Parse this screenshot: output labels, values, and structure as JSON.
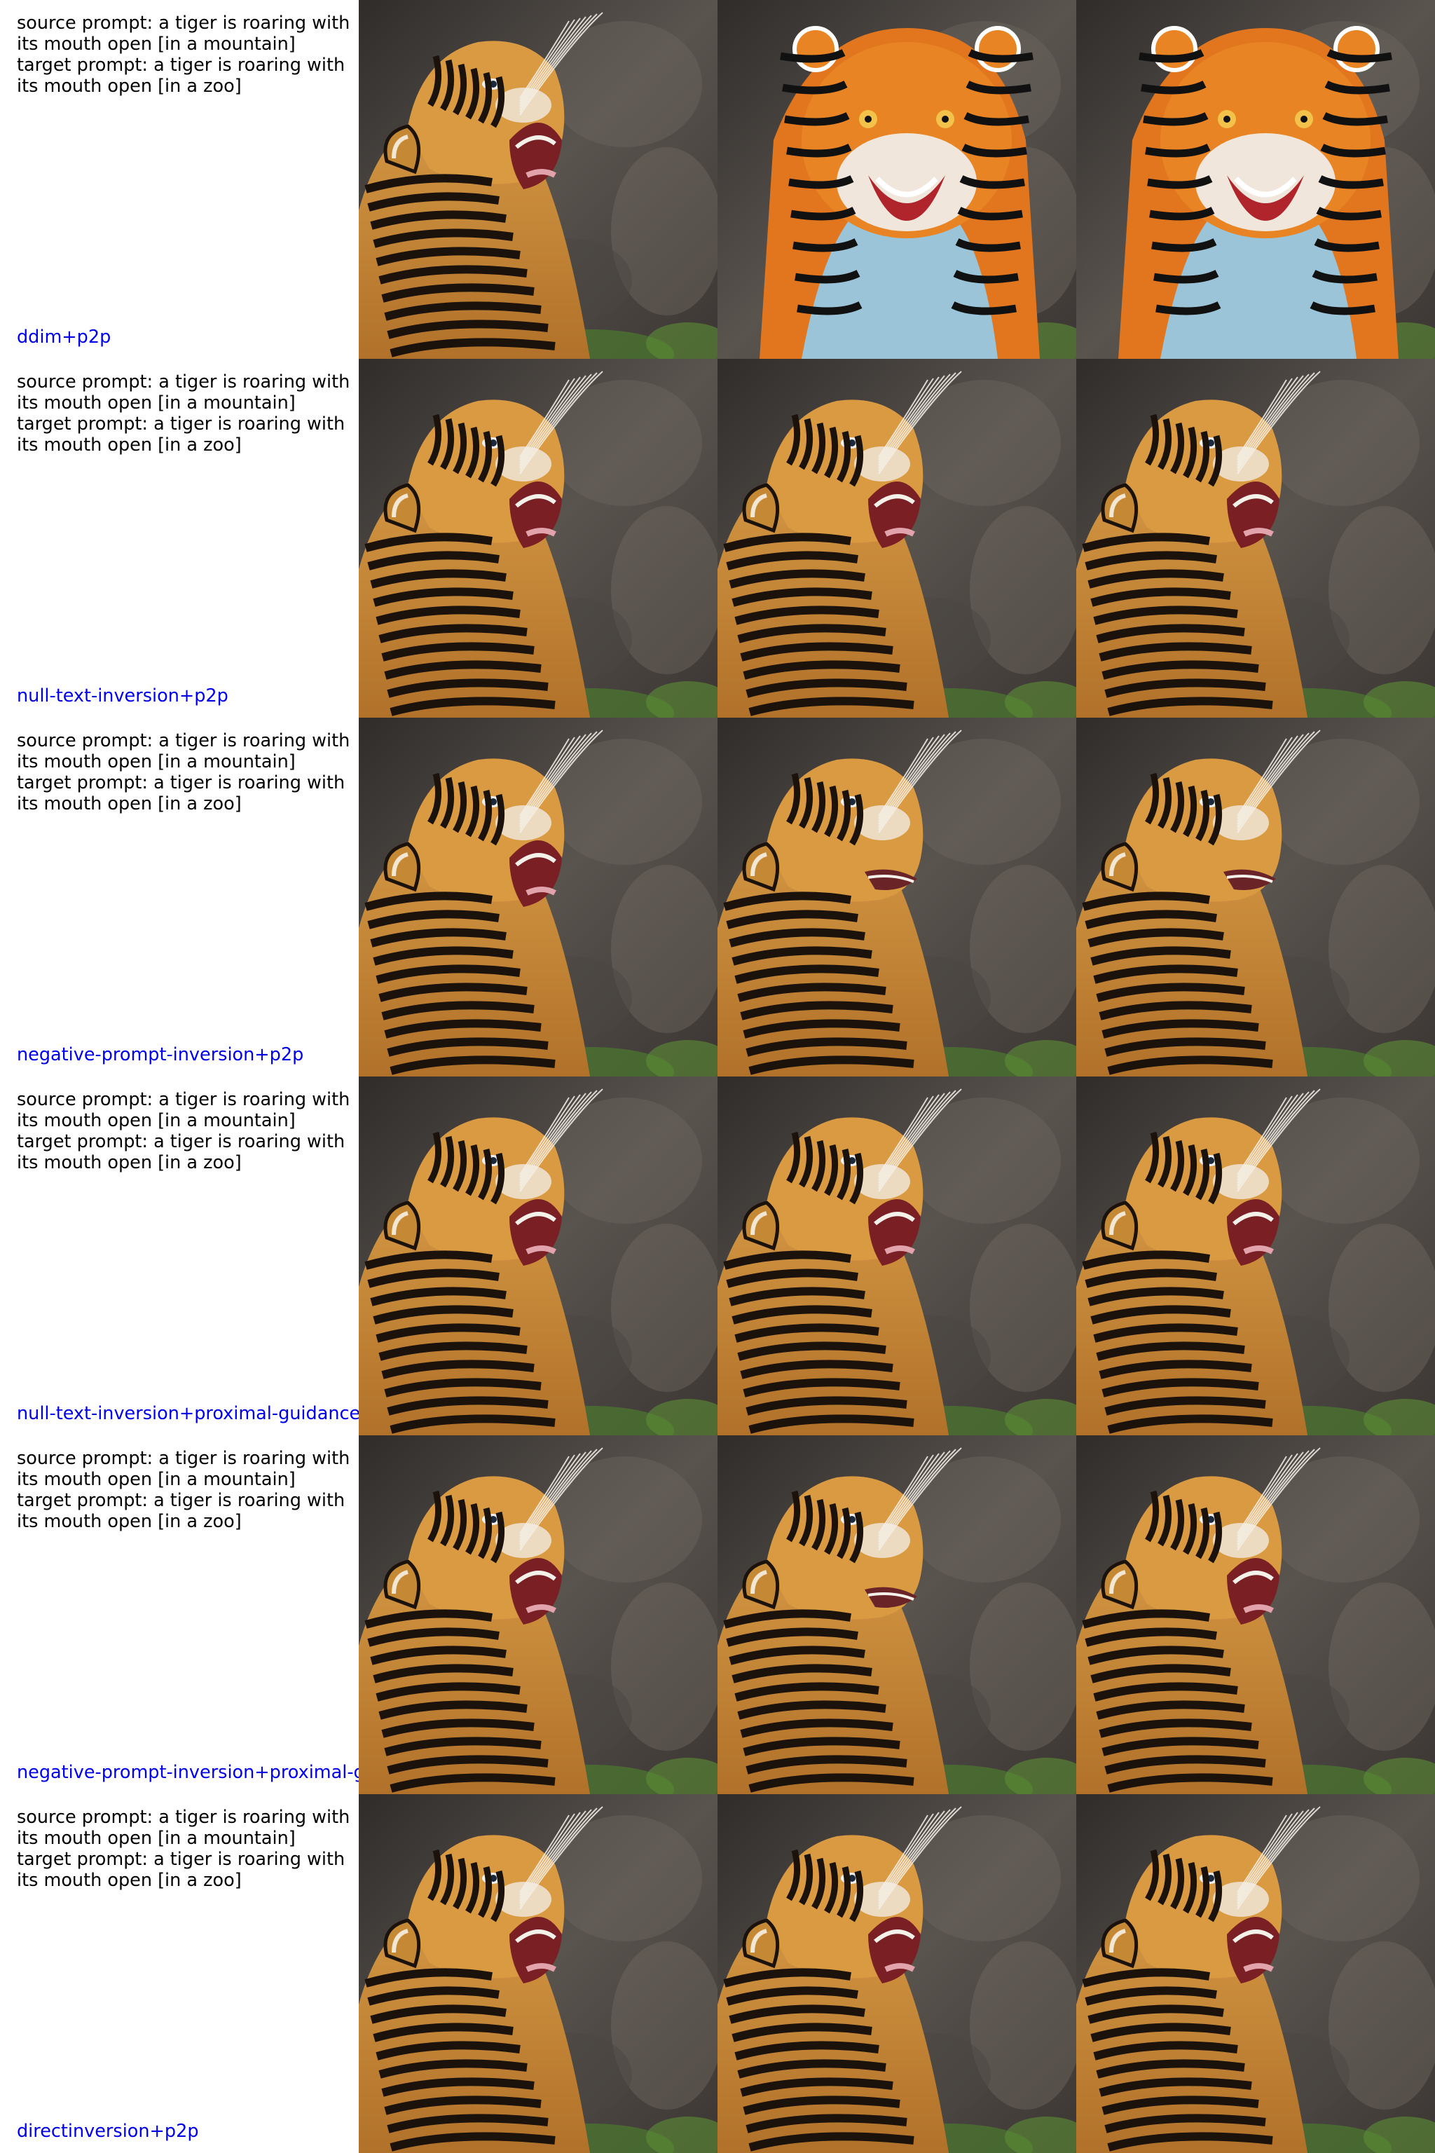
{
  "rows": [
    {
      "prompt_line1": "source prompt: a tiger is roaring with\nits mouth open [in a mountain]",
      "prompt_line2": "target prompt: a tiger is roaring with\nits mouth open [in a zoo]",
      "method": "ddim+p2p",
      "images": [
        "source-tiger-photo",
        "ddim-edit-reconstruction",
        "ddim-edit-target"
      ]
    },
    {
      "prompt_line1": "source prompt: a tiger is roaring with\nits mouth open [in a mountain]",
      "prompt_line2": "target prompt: a tiger is roaring with\nits mouth open [in a zoo]",
      "method": "null-text-inversion+p2p",
      "images": [
        "source-tiger-photo",
        "reconstruction",
        "edited-result"
      ]
    },
    {
      "prompt_line1": "source prompt: a tiger is roaring with\nits mouth open [in a mountain]",
      "prompt_line2": "target prompt: a tiger is roaring with\nits mouth open [in a zoo]",
      "method": "negative-prompt-inversion+p2p",
      "images": [
        "source-tiger-photo",
        "reconstruction",
        "edited-result"
      ]
    },
    {
      "prompt_line1": "source prompt: a tiger is roaring with\nits mouth open [in a mountain]",
      "prompt_line2": "target prompt: a tiger is roaring with\nits mouth open [in a zoo]",
      "method": "null-text-inversion+proximal-guidance",
      "images": [
        "source-tiger-photo",
        "reconstruction",
        "edited-result"
      ]
    },
    {
      "prompt_line1": "source prompt: a tiger is roaring with\nits mouth open [in a mountain]",
      "prompt_line2": "target prompt: a tiger is roaring with\nits mouth open [in a zoo]",
      "method": "negative-prompt-inversion+proximal-g",
      "images": [
        "source-tiger-photo",
        "reconstruction",
        "edited-result"
      ]
    },
    {
      "prompt_line1": "source prompt: a tiger is roaring with\nits mouth open [in a mountain]",
      "prompt_line2": "target prompt: a tiger is roaring with\nits mouth open [in a zoo]",
      "method": "directinversion+p2p",
      "images": [
        "source-tiger-photo",
        "reconstruction",
        "edited-result"
      ]
    }
  ],
  "colors": {
    "method_label": "#0000ee",
    "rock_dark": "#3a3734",
    "rock_mid": "#5b5550",
    "tiger_orange": "#c98a35",
    "tiger_stripe": "#1a120b",
    "foliage": "#4c7a2e"
  }
}
